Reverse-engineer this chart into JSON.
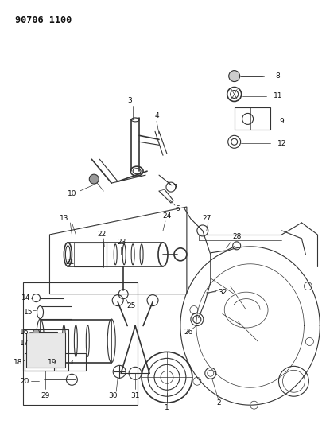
{
  "title": "90706 1100",
  "bg_color": "#ffffff",
  "fig_width": 4.05,
  "fig_height": 5.33,
  "dpi": 100,
  "line_color": "#333333",
  "label_color": "#111111",
  "label_fontsize": 6.5,
  "title_fontsize": 8.5
}
